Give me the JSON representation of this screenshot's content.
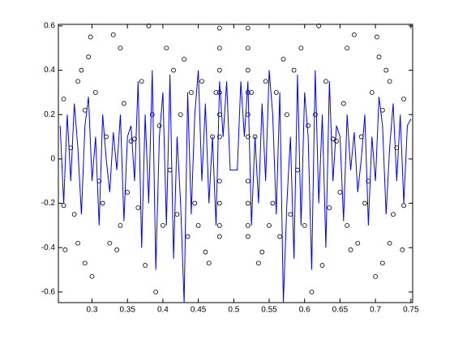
{
  "chart_data": {
    "type": "line",
    "xlim": [
      0.2525,
      0.7525
    ],
    "ylim": [
      -0.648,
      0.607
    ],
    "xticks": [
      0.3,
      0.35,
      0.4,
      0.45,
      0.5,
      0.55,
      0.6,
      0.65,
      0.7,
      0.75
    ],
    "yticks": [
      -0.6,
      -0.4,
      -0.2,
      0,
      0.2,
      0.4,
      0.6
    ],
    "series": [
      {
        "type": "scatter",
        "color": "#000000",
        "x": [
          0.26,
          0.26,
          0.262,
          0.27,
          0.275,
          0.28,
          0.28,
          0.285,
          0.29,
          0.29,
          0.295,
          0.298,
          0.3,
          0.305,
          0.31,
          0.315,
          0.32,
          0.325,
          0.33,
          0.335,
          0.34,
          0.34,
          0.345,
          0.35,
          0.355,
          0.36,
          0.365,
          0.37,
          0.375,
          0.38,
          0.385,
          0.39,
          0.395,
          0.4,
          0.405,
          0.41,
          0.415,
          0.42,
          0.425,
          0.43,
          0.435,
          0.44,
          0.445,
          0.45,
          0.455,
          0.46,
          0.465,
          0.47,
          0.475,
          0.48,
          0.48,
          0.48,
          0.48,
          0.48,
          0.48,
          0.48,
          0.48,
          0.48,
          0.48,
          0.74,
          0.74,
          0.738,
          0.73,
          0.725,
          0.72,
          0.72,
          0.715,
          0.71,
          0.71,
          0.705,
          0.702,
          0.7,
          0.695,
          0.69,
          0.685,
          0.68,
          0.675,
          0.67,
          0.665,
          0.66,
          0.66,
          0.655,
          0.65,
          0.645,
          0.64,
          0.635,
          0.63,
          0.625,
          0.62,
          0.615,
          0.61,
          0.605,
          0.6,
          0.595,
          0.59,
          0.585,
          0.58,
          0.575,
          0.57,
          0.565,
          0.56,
          0.555,
          0.55,
          0.545,
          0.54,
          0.535,
          0.53,
          0.525,
          0.52,
          0.52,
          0.52,
          0.52,
          0.52,
          0.52,
          0.52,
          0.52,
          0.52,
          0.52
        ],
        "values": [
          0.27,
          -0.21,
          -0.41,
          0.05,
          -0.25,
          0.35,
          -0.38,
          0.4,
          0.22,
          -0.47,
          0.46,
          0.55,
          -0.53,
          0.3,
          -0.1,
          -0.2,
          0.1,
          -0.38,
          0.56,
          -0.41,
          0.5,
          -0.3,
          0.25,
          -0.15,
          0.08,
          0.09,
          -0.22,
          0.35,
          -0.48,
          0.6,
          0.2,
          -0.6,
          0.15,
          -0.3,
          0.5,
          -0.05,
          0.4,
          -0.25,
          0.2,
          0.45,
          -0.35,
          0.3,
          -0.2,
          -0.3,
          0.35,
          -0.42,
          -0.47,
          0.1,
          0.3,
          0.59,
          0.5,
          0.4,
          0.3,
          0.2,
          0.1,
          -0.1,
          -0.2,
          -0.3,
          -0.35,
          0.27,
          -0.21,
          -0.41,
          0.05,
          -0.25,
          0.35,
          -0.38,
          0.4,
          0.22,
          -0.47,
          0.46,
          0.55,
          -0.53,
          0.3,
          -0.1,
          -0.2,
          0.1,
          -0.38,
          0.56,
          -0.41,
          0.5,
          -0.3,
          0.25,
          -0.15,
          0.08,
          0.09,
          -0.22,
          0.35,
          -0.48,
          0.6,
          0.2,
          -0.6,
          0.15,
          -0.3,
          0.5,
          -0.05,
          0.4,
          -0.25,
          0.2,
          0.45,
          -0.35,
          0.3,
          -0.2,
          -0.3,
          0.35,
          -0.42,
          -0.47,
          0.1,
          0.3,
          0.59,
          0.5,
          0.4,
          0.3,
          0.2,
          0.1,
          -0.1,
          -0.2,
          -0.3,
          -0.35
        ]
      },
      {
        "type": "line",
        "color": "#0000ff",
        "x": [
          0.255,
          0.26,
          0.265,
          0.27,
          0.275,
          0.28,
          0.285,
          0.29,
          0.295,
          0.3,
          0.305,
          0.31,
          0.315,
          0.32,
          0.325,
          0.33,
          0.335,
          0.34,
          0.345,
          0.35,
          0.355,
          0.36,
          0.365,
          0.37,
          0.375,
          0.38,
          0.385,
          0.39,
          0.395,
          0.4,
          0.405,
          0.41,
          0.415,
          0.42,
          0.425,
          0.43,
          0.435,
          0.44,
          0.445,
          0.45,
          0.455,
          0.46,
          0.465,
          0.47,
          0.475,
          0.48,
          0.485,
          0.49,
          0.495,
          0.5,
          0.505,
          0.51,
          0.515,
          0.52,
          0.525,
          0.53,
          0.535,
          0.54,
          0.545,
          0.55,
          0.555,
          0.56,
          0.565,
          0.57,
          0.575,
          0.58,
          0.585,
          0.59,
          0.595,
          0.6,
          0.605,
          0.61,
          0.615,
          0.62,
          0.625,
          0.63,
          0.635,
          0.64,
          0.645,
          0.65,
          0.655,
          0.66,
          0.665,
          0.67,
          0.675,
          0.68,
          0.685,
          0.69,
          0.695,
          0.7,
          0.705,
          0.71,
          0.715,
          0.72,
          0.725,
          0.73,
          0.735,
          0.74,
          0.745,
          0.75
        ],
        "values": [
          0.15,
          -0.2,
          0.2,
          -0.1,
          0.25,
          0.05,
          -0.25,
          0.15,
          0.28,
          -0.1,
          0.1,
          -0.3,
          0.2,
          0.0,
          -0.15,
          0.12,
          -0.05,
          0.2,
          -0.28,
          0.1,
          0.15,
          -0.1,
          0.35,
          -0.4,
          0.2,
          -0.2,
          0.4,
          -0.5,
          0.1,
          0.3,
          -0.3,
          0.38,
          -0.45,
          0.1,
          -0.2,
          -0.65,
          0.3,
          -0.25,
          0.2,
          0.4,
          -0.1,
          0.25,
          -0.2,
          0.1,
          -0.3,
          0.35,
          0.1,
          0.35,
          -0.05,
          -0.05,
          -0.05,
          0.35,
          0.1,
          0.35,
          -0.3,
          0.1,
          -0.2,
          0.25,
          -0.1,
          0.4,
          0.2,
          -0.25,
          0.3,
          -0.65,
          -0.2,
          0.1,
          -0.45,
          0.38,
          -0.3,
          0.3,
          0.1,
          -0.5,
          0.4,
          -0.2,
          0.2,
          -0.4,
          0.35,
          -0.1,
          0.15,
          0.1,
          -0.28,
          0.2,
          -0.05,
          0.12,
          -0.15,
          0.0,
          0.2,
          -0.3,
          0.1,
          -0.1,
          0.28,
          0.15,
          -0.25,
          0.05,
          0.25,
          -0.1,
          0.2,
          -0.2,
          0.15,
          0.18
        ]
      }
    ]
  }
}
